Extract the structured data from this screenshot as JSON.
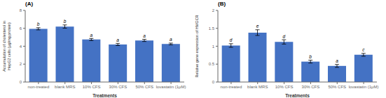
{
  "chart_data": [
    {
      "type": "bar",
      "title": "(A)",
      "x_label": "Treatments",
      "y_label": "Accumulation of cholesterol in\nHepG2 cells (μg/mg protein)",
      "categories": [
        "non-treated",
        "blank MRS",
        "10% CFS",
        "30% CFS",
        "50% CFS",
        "lovastatin (1μM)"
      ],
      "values": [
        5.95,
        6.2,
        4.75,
        4.2,
        4.65,
        4.25
      ],
      "errors": [
        0.12,
        0.18,
        0.12,
        0.12,
        0.12,
        0.1
      ],
      "annotations": [
        "b",
        "b",
        "a",
        "a",
        "a",
        "a"
      ],
      "color": "#4472C4",
      "ylim": [
        0,
        8
      ],
      "yticks": [
        0,
        2,
        4,
        6,
        8
      ],
      "grid": false
    },
    {
      "type": "bar",
      "title": "(B)",
      "x_label": "Treatments",
      "y_label": "Relative gene expression of HMGCR",
      "categories": [
        "non-treated",
        "blank MRS",
        "10% CFS",
        "30% CFS",
        "50% CFS",
        "lovastatin (1μM)"
      ],
      "values": [
        1.02,
        1.38,
        1.12,
        0.57,
        0.45,
        0.76
      ],
      "errors": [
        0.05,
        0.08,
        0.06,
        0.04,
        0.04,
        0.04
      ],
      "annotations": [
        "d",
        "e",
        "d",
        "b",
        "a",
        "c"
      ],
      "color": "#4472C4",
      "ylim": [
        0,
        2
      ],
      "yticks": [
        0,
        0.5,
        1,
        1.5,
        2
      ],
      "grid": false
    }
  ]
}
